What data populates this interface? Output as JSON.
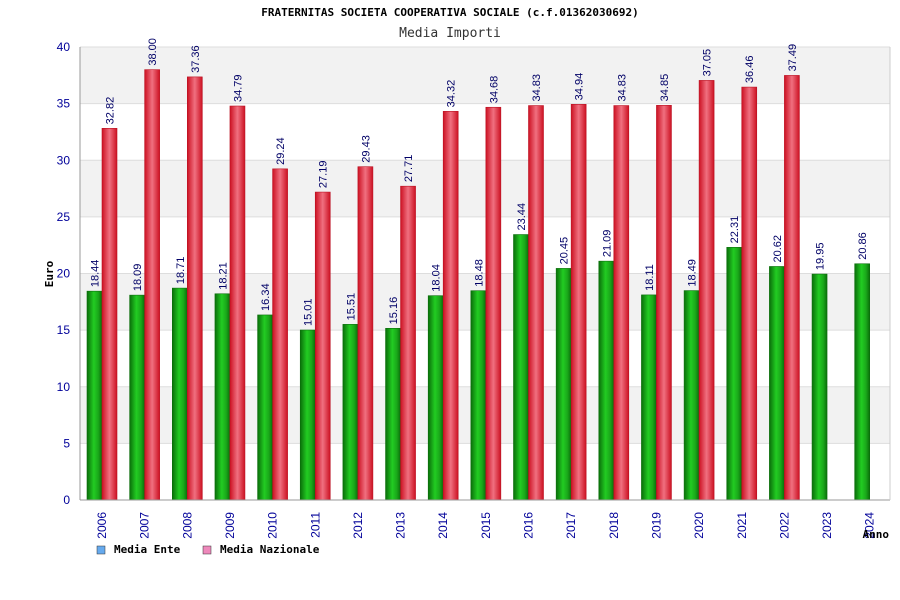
{
  "chart_data": {
    "type": "bar",
    "title": "FRATERNITAS SOCIETA COOPERATIVA SOCIALE (c.f.01362030692)",
    "subtitle": "Media Importi",
    "xlabel": "Anno",
    "ylabel": "Euro",
    "ylim": [
      0,
      40
    ],
    "yticks": [
      0,
      5,
      10,
      15,
      20,
      25,
      30,
      35,
      40
    ],
    "grid": true,
    "legend_position": "bottom-left",
    "categories": [
      "2006",
      "2007",
      "2008",
      "2009",
      "2010",
      "2011",
      "2012",
      "2013",
      "2014",
      "2015",
      "2016",
      "2017",
      "2018",
      "2019",
      "2020",
      "2021",
      "2022",
      "2023",
      "2024"
    ],
    "series": [
      {
        "name": "Media Ente",
        "legend_color": "#66aaee",
        "bar_color": "#22bb22",
        "values": [
          18.44,
          18.09,
          18.71,
          18.21,
          16.34,
          15.01,
          15.51,
          15.16,
          18.04,
          18.48,
          23.44,
          20.45,
          21.09,
          18.11,
          18.49,
          22.31,
          20.62,
          19.95,
          20.86
        ]
      },
      {
        "name": "Media Nazionale",
        "legend_color": "#ee88bb",
        "bar_color": "#ee3344",
        "values": [
          32.82,
          38.0,
          37.36,
          34.79,
          29.24,
          27.19,
          29.43,
          27.71,
          34.32,
          34.68,
          34.83,
          34.94,
          34.83,
          34.85,
          37.05,
          36.46,
          37.49,
          null,
          null
        ]
      }
    ]
  }
}
